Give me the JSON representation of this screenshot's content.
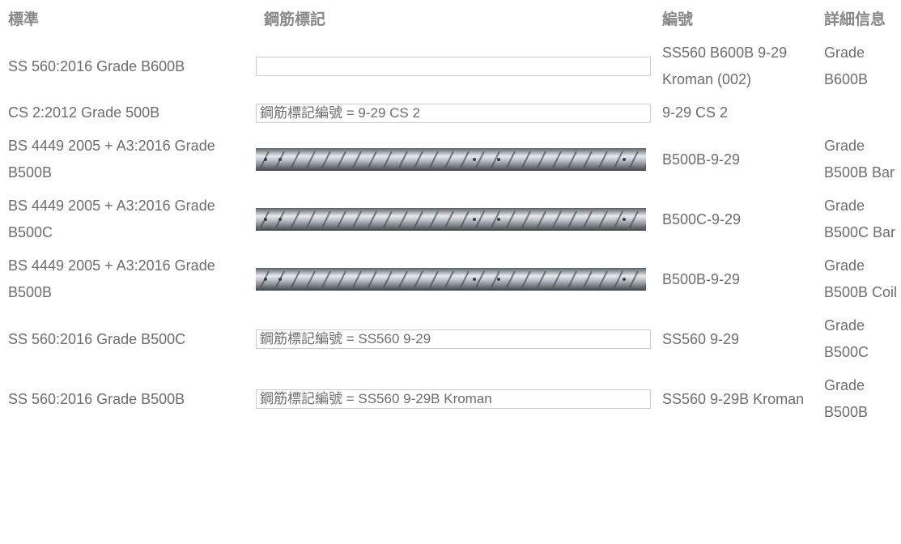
{
  "table": {
    "headers": [
      "標準",
      "鋼筋標記",
      "編號",
      "詳細信息"
    ],
    "rows": [
      {
        "standard": "SS 560:2016 Grade B600B",
        "marking_type": "box",
        "code": "SS560 B600B 9-29 Kroman (002)",
        "detail": "Grade B600B"
      },
      {
        "standard": "CS 2:2012 Grade 500B",
        "marking_type": "box",
        "marking": "鋼筋標記編號 = 9-29 CS 2",
        "code": "9-29 CS 2"
      },
      {
        "standard": "BS 4449 2005 + A3:2016 Grade B500B",
        "marking_type": "rebar",
        "code": "B500B-9-29",
        "detail": "Grade B500B Bar"
      },
      {
        "standard": "BS 4449 2005 + A3:2016 Grade B500C",
        "marking_type": "rebar",
        "code": "B500C-9-29",
        "detail": "Grade B500C Bar"
      },
      {
        "standard": "BS 4449 2005 + A3:2016 Grade B500B",
        "marking_type": "rebar",
        "code": "B500B-9-29",
        "detail": "Grade B500B Coil"
      },
      {
        "standard": "SS 560:2016 Grade B500C",
        "marking_type": "box",
        "marking": "鋼筋標記編號 = SS560 9-29",
        "code": "SS560 9-29",
        "detail": "Grade B500C"
      },
      {
        "standard": "SS 560:2016 Grade B500B",
        "marking_type": "box",
        "marking": "鋼筋標記編號 = SS560 9-29B Kroman",
        "code": "SS560 9-29B Kroman",
        "detail": "Grade B500B"
      }
    ]
  }
}
